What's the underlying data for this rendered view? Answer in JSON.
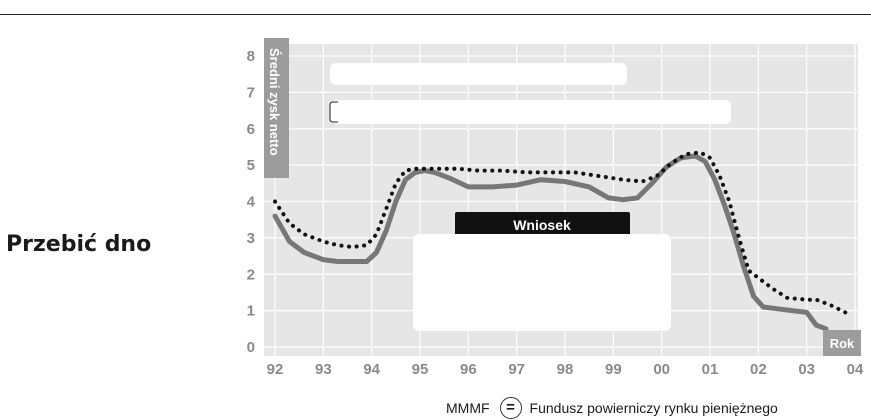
{
  "page": {
    "side_title": "Przebić dno",
    "legend_abbr": "MMMF",
    "legend_symbol": "=",
    "legend_text": "Fundusz powierniczy rynku pieniężnego"
  },
  "chart_data": {
    "type": "line",
    "ylabel": "Średni zysk netto",
    "xlabel": "Rok",
    "ylim": [
      0,
      8
    ],
    "yticks": [
      "0",
      "1",
      "2",
      "3",
      "4",
      "5",
      "6",
      "7",
      "8"
    ],
    "xlim": [
      1992,
      2004
    ],
    "xticks": [
      {
        "x": 1992,
        "label": "92"
      },
      {
        "x": 1993,
        "label": "93"
      },
      {
        "x": 1994,
        "label": "94"
      },
      {
        "x": 1995,
        "label": "95"
      },
      {
        "x": 1996,
        "label": "96"
      },
      {
        "x": 1997,
        "label": "97"
      },
      {
        "x": 1998,
        "label": "98"
      },
      {
        "x": 1999,
        "label": "99"
      },
      {
        "x": 2000,
        "label": "00"
      },
      {
        "x": 2001,
        "label": "01"
      },
      {
        "x": 2002,
        "label": "02"
      },
      {
        "x": 2003,
        "label": "03"
      },
      {
        "x": 2004,
        "label": "04"
      }
    ],
    "annotation_label": "Wniosek",
    "colors": {
      "background": "#e6e6e6",
      "grid": "#ffffff",
      "solid": "#777777",
      "dotted": "#111111",
      "axis_label_bg": "#9c9c9c"
    },
    "grid": true,
    "series": [
      {
        "style": "solid",
        "x": [
          1992.0,
          1992.3,
          1992.6,
          1993.0,
          1993.3,
          1993.6,
          1993.9,
          1994.1,
          1994.3,
          1994.5,
          1994.7,
          1994.9,
          1995.1,
          1995.3,
          1995.6,
          1996.0,
          1996.5,
          1997.0,
          1997.5,
          1998.0,
          1998.5,
          1998.9,
          1999.2,
          1999.5,
          1999.8,
          2000.1,
          2000.4,
          2000.7,
          2000.9,
          2001.1,
          2001.3,
          2001.5,
          2001.7,
          2001.9,
          2002.1,
          2002.4,
          2002.7,
          2003.0,
          2003.2,
          2003.4
        ],
        "values": [
          3.6,
          2.9,
          2.6,
          2.4,
          2.35,
          2.35,
          2.35,
          2.6,
          3.2,
          4.0,
          4.6,
          4.8,
          4.85,
          4.8,
          4.65,
          4.4,
          4.4,
          4.45,
          4.6,
          4.55,
          4.4,
          4.1,
          4.05,
          4.1,
          4.5,
          4.95,
          5.2,
          5.25,
          5.1,
          4.6,
          3.9,
          3.1,
          2.2,
          1.4,
          1.1,
          1.05,
          1.0,
          0.95,
          0.6,
          0.5
        ]
      },
      {
        "style": "dotted",
        "x": [
          1992.0,
          1992.3,
          1992.6,
          1993.0,
          1993.3,
          1993.6,
          1993.9,
          1994.1,
          1994.3,
          1994.5,
          1994.7,
          1994.9,
          1995.1,
          1995.4,
          1995.8,
          1996.2,
          1996.7,
          1997.2,
          1997.7,
          1998.2,
          1998.7,
          1999.2,
          1999.6,
          1999.9,
          2000.2,
          2000.5,
          2000.8,
          2001.0,
          2001.2,
          2001.4,
          2001.6,
          2001.8,
          2002.0,
          2002.3,
          2002.6,
          2003.0,
          2003.2,
          2003.5,
          2003.8
        ],
        "values": [
          4.0,
          3.4,
          3.1,
          2.9,
          2.8,
          2.75,
          2.8,
          3.1,
          3.8,
          4.5,
          4.85,
          4.9,
          4.9,
          4.9,
          4.9,
          4.85,
          4.85,
          4.8,
          4.8,
          4.8,
          4.7,
          4.6,
          4.55,
          4.7,
          5.05,
          5.3,
          5.35,
          5.2,
          4.7,
          4.0,
          3.0,
          2.1,
          1.9,
          1.6,
          1.35,
          1.3,
          1.3,
          1.15,
          0.95
        ]
      }
    ]
  }
}
